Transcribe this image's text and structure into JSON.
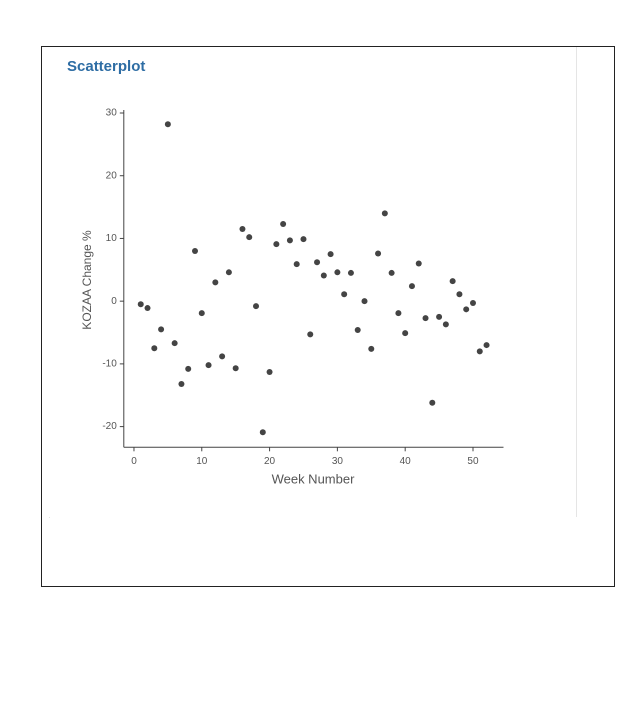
{
  "chart_data": {
    "type": "scatter",
    "title": "Scatterplot",
    "x_label": "Week Number",
    "y_label": "KOZAA Change %",
    "x": [
      1,
      2,
      3,
      4,
      5,
      6,
      7,
      8,
      9,
      10,
      11,
      12,
      13,
      14,
      15,
      16,
      17,
      18,
      19,
      20,
      21,
      22,
      23,
      24,
      25,
      26,
      27,
      28,
      29,
      30,
      31,
      32,
      33,
      34,
      35,
      36,
      37,
      38,
      39,
      40,
      41,
      42,
      43,
      44,
      45,
      46,
      47,
      48,
      49,
      50,
      51,
      52
    ],
    "values": [
      -0.5,
      -1.1,
      -7.5,
      -4.5,
      28.2,
      -6.7,
      -13.2,
      -10.8,
      8,
      -1.9,
      -10.2,
      3,
      -8.8,
      4.6,
      -10.7,
      11.5,
      10.2,
      -0.8,
      -20.9,
      -11.3,
      9.1,
      12.3,
      9.7,
      5.9,
      9.9,
      -5.3,
      6.2,
      4.1,
      7.5,
      4.6,
      1.1,
      4.5,
      -4.6,
      0,
      -7.6,
      7.6,
      14,
      4.5,
      -1.9,
      -5.1,
      2.4,
      6,
      -2.7,
      -16.2,
      -2.5,
      -3.7,
      3.2,
      1.1,
      -1.3,
      -0.3,
      -8,
      -7
    ],
    "color": "#444444",
    "xlim": [
      -1.5,
      54.5
    ],
    "ylim": [
      -23.3,
      30
    ],
    "xticks": [
      0,
      10,
      20,
      30,
      40,
      50
    ],
    "yticks": [
      -20,
      -10,
      0,
      10,
      20,
      30
    ]
  }
}
